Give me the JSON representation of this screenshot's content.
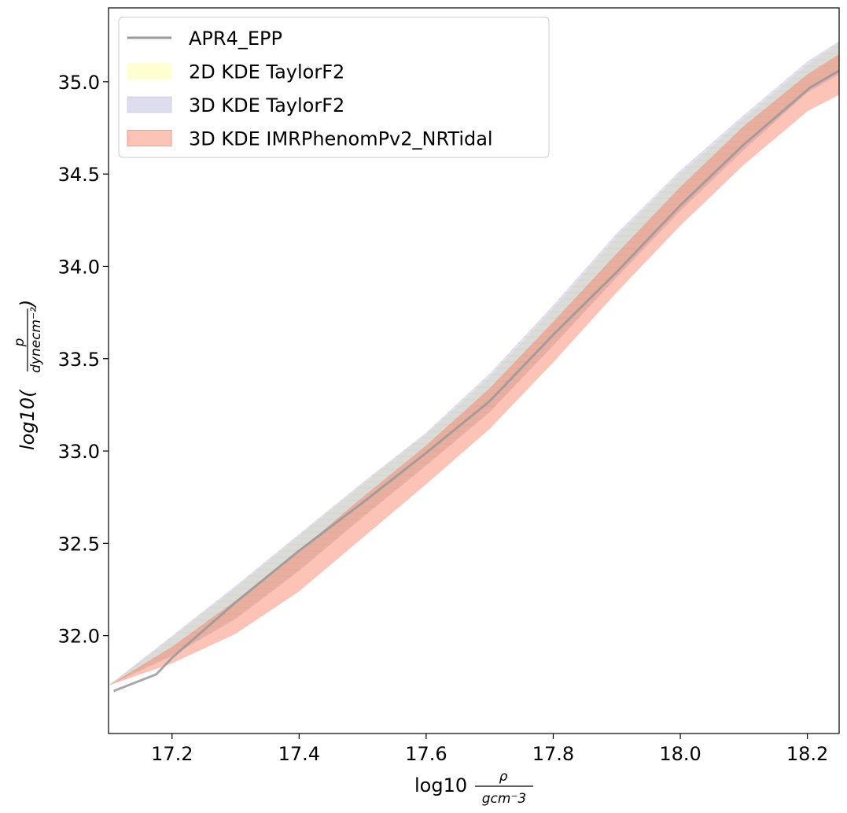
{
  "chart_data": {
    "type": "line",
    "title": "",
    "xlabel": {
      "prefix": "log10",
      "numerator": "ρ",
      "denominator": "gcm⁻3"
    },
    "ylabel": {
      "prefix": "log10(",
      "numerator": "p",
      "denominator": "dynecm⁻²",
      "suffix": ")"
    },
    "xlim": [
      17.1,
      18.25
    ],
    "ylim": [
      31.47,
      35.4
    ],
    "xticks": [
      17.2,
      17.4,
      17.6,
      17.8,
      18.0,
      18.2
    ],
    "xtick_labels": [
      "17.2",
      "17.4",
      "17.6",
      "17.8",
      "18.0",
      "18.2"
    ],
    "yticks": [
      32.0,
      32.5,
      33.0,
      33.5,
      34.0,
      34.5,
      35.0
    ],
    "ytick_labels": [
      "32.0",
      "32.5",
      "33.0",
      "33.5",
      "34.0",
      "34.5",
      "35.0"
    ],
    "grid": false,
    "legend_position": "top-left",
    "series": [
      {
        "name": "APR4_EPP",
        "kind": "line",
        "color": "#9e9e9e",
        "x": [
          17.108,
          17.175,
          17.2,
          17.3,
          17.4,
          17.5,
          17.6,
          17.7,
          17.8,
          17.9,
          18.0,
          18.1,
          18.205,
          18.25
        ],
        "y": [
          31.7,
          31.79,
          31.88,
          32.18,
          32.46,
          32.72,
          32.99,
          33.27,
          33.63,
          33.97,
          34.33,
          34.66,
          34.97,
          35.06
        ]
      },
      {
        "name": "2D KDE TaylorF2",
        "kind": "band",
        "color": "#ffffcc",
        "x": [
          17.1,
          17.2,
          17.3,
          17.4,
          17.5,
          17.6,
          17.7,
          17.8,
          17.9,
          18.0,
          18.1,
          18.2,
          18.25
        ],
        "lower": [
          31.73,
          31.9,
          32.1,
          32.36,
          32.65,
          32.93,
          33.22,
          33.58,
          33.95,
          34.31,
          34.64,
          34.95,
          35.05
        ],
        "upper": [
          31.73,
          31.99,
          32.26,
          32.54,
          32.82,
          33.09,
          33.4,
          33.77,
          34.16,
          34.5,
          34.8,
          35.09,
          35.21
        ]
      },
      {
        "name": "3D KDE TaylorF2",
        "kind": "band",
        "color": "#bcbddc",
        "x": [
          17.1,
          17.2,
          17.3,
          17.4,
          17.5,
          17.6,
          17.7,
          17.8,
          17.9,
          18.0,
          18.1,
          18.2,
          18.25
        ],
        "lower": [
          31.73,
          31.89,
          32.09,
          32.35,
          32.64,
          32.92,
          33.21,
          33.57,
          33.94,
          34.3,
          34.63,
          34.94,
          35.04
        ],
        "upper": [
          31.73,
          32.0,
          32.27,
          32.55,
          32.83,
          33.1,
          33.42,
          33.79,
          34.18,
          34.52,
          34.82,
          35.11,
          35.22
        ]
      },
      {
        "name": "3D KDE IMRPhenomPv2_NRTidal",
        "kind": "band",
        "color": "#fb6a4a",
        "x": [
          17.1,
          17.2,
          17.3,
          17.4,
          17.5,
          17.6,
          17.7,
          17.8,
          17.9,
          18.0,
          18.1,
          18.2,
          18.25
        ],
        "lower": [
          31.73,
          31.85,
          32.01,
          32.24,
          32.53,
          32.82,
          33.12,
          33.48,
          33.86,
          34.22,
          34.55,
          34.84,
          34.93
        ],
        "upper": [
          31.73,
          31.94,
          32.19,
          32.46,
          32.75,
          33.03,
          33.34,
          33.7,
          34.07,
          34.43,
          34.76,
          35.04,
          35.15
        ]
      }
    ]
  }
}
